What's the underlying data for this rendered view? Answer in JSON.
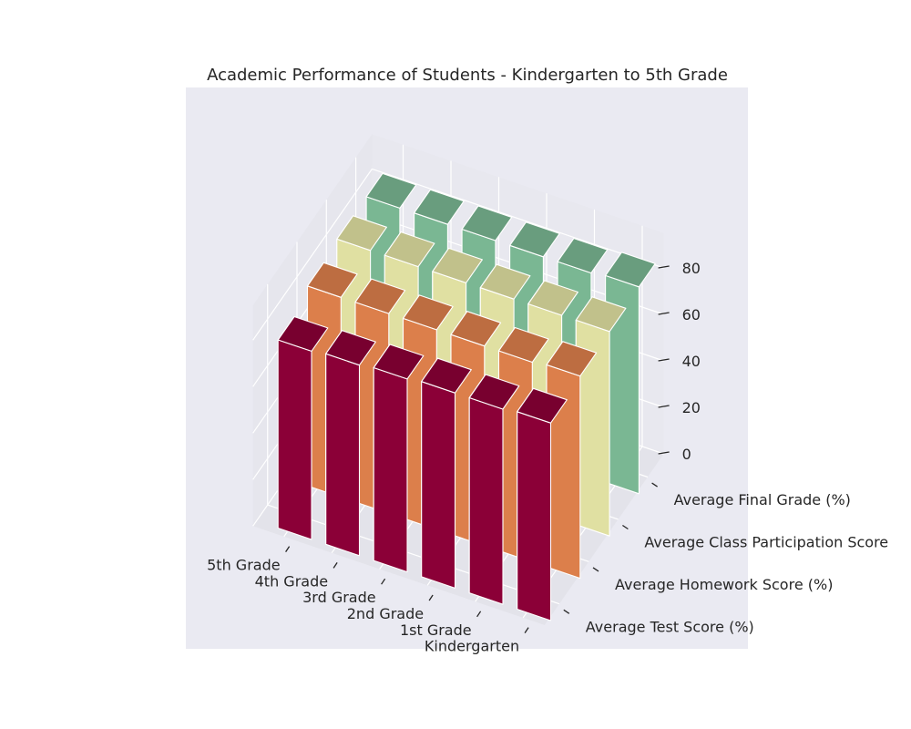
{
  "chart_data": {
    "type": "bar3d",
    "title": "Academic Performance of Students - Kindergarten to 5th Grade",
    "grades": [
      "Kindergarten",
      "1st Grade",
      "2nd Grade",
      "3rd Grade",
      "4th Grade",
      "5th Grade"
    ],
    "series": [
      {
        "name": "Average Test Score (%)",
        "color": "#8b0037",
        "values": [
          85,
          84,
          84,
          83,
          82,
          81
        ]
      },
      {
        "name": "Average Homework Score (%)",
        "color": "#dc7f4b",
        "values": [
          87,
          86,
          86,
          86,
          86,
          86
        ]
      },
      {
        "name": "Average Class Participation Score",
        "color": "#e0e0a2",
        "values": [
          88,
          88,
          88,
          88,
          88,
          88
        ]
      },
      {
        "name": "Average Final Grade (%)",
        "color": "#7ab793",
        "values": [
          89,
          88,
          88,
          88,
          88,
          88
        ]
      }
    ],
    "zticks": [
      0,
      20,
      40,
      60,
      80
    ],
    "zlim": [
      0,
      95
    ],
    "grid": true
  }
}
